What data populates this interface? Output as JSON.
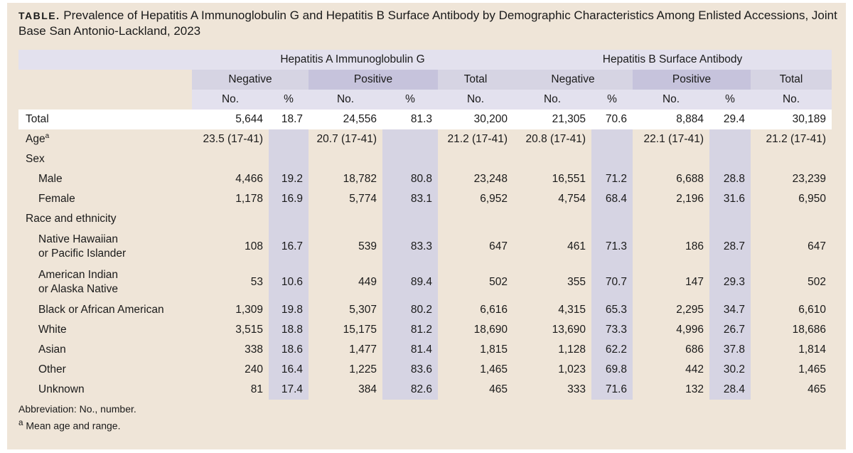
{
  "title": {
    "lead": "TABLE.",
    "text": "Prevalence of Hepatitis A Immunoglobulin G and Hepatitis B Surface Antibody by Demographic Characteristics Among Enlisted Accessions, Joint Base San Antonio-Lackland, 2023"
  },
  "header": {
    "group_a": "Hepatitis A Immunoglobulin G",
    "group_b": "Hepatitis B Surface Antibody",
    "negative": "Negative",
    "positive": "Positive",
    "total": "Total",
    "no": "No.",
    "pct": "%"
  },
  "rows": [
    {
      "label": "Total",
      "a_neg_no": "5,644",
      "a_neg_pct": "18.7",
      "a_pos_no": "24,556",
      "a_pos_pct": "81.3",
      "a_total": "30,200",
      "b_neg_no": "21,305",
      "b_neg_pct": "70.6",
      "b_pos_no": "8,884",
      "b_pos_pct": "29.4",
      "b_total": "30,189"
    },
    {
      "label": "Age",
      "sup": "a",
      "a_neg_no": "23.5 (17-41)",
      "a_neg_pct": "",
      "a_pos_no": "20.7 (17-41)",
      "a_pos_pct": "",
      "a_total": "21.2 (17-41)",
      "b_neg_no": "20.8 (17-41)",
      "b_neg_pct": "",
      "b_pos_no": "22.1 (17-41)",
      "b_pos_pct": "",
      "b_total": "21.2 (17-41)"
    },
    {
      "label": "Sex"
    },
    {
      "label": "Male",
      "a_neg_no": "4,466",
      "a_neg_pct": "19.2",
      "a_pos_no": "18,782",
      "a_pos_pct": "80.8",
      "a_total": "23,248",
      "b_neg_no": "16,551",
      "b_neg_pct": "71.2",
      "b_pos_no": "6,688",
      "b_pos_pct": "28.8",
      "b_total": "23,239"
    },
    {
      "label": "Female",
      "a_neg_no": "1,178",
      "a_neg_pct": "16.9",
      "a_pos_no": "5,774",
      "a_pos_pct": "83.1",
      "a_total": "6,952",
      "b_neg_no": "4,754",
      "b_neg_pct": "68.4",
      "b_pos_no": "2,196",
      "b_pos_pct": "31.6",
      "b_total": "6,950"
    },
    {
      "label": "Race and ethnicity"
    },
    {
      "label": "Native Hawaiian",
      "label2": "or Pacific Islander",
      "a_neg_no": "108",
      "a_neg_pct": "16.7",
      "a_pos_no": "539",
      "a_pos_pct": "83.3",
      "a_total": "647",
      "b_neg_no": "461",
      "b_neg_pct": "71.3",
      "b_pos_no": "186",
      "b_pos_pct": "28.7",
      "b_total": "647"
    },
    {
      "label": "American Indian",
      "label2": "or Alaska Native",
      "a_neg_no": "53",
      "a_neg_pct": "10.6",
      "a_pos_no": "449",
      "a_pos_pct": "89.4",
      "a_total": "502",
      "b_neg_no": "355",
      "b_neg_pct": "70.7",
      "b_pos_no": "147",
      "b_pos_pct": "29.3",
      "b_total": "502"
    },
    {
      "label": "Black or African American",
      "a_neg_no": "1,309",
      "a_neg_pct": "19.8",
      "a_pos_no": "5,307",
      "a_pos_pct": "80.2",
      "a_total": "6,616",
      "b_neg_no": "4,315",
      "b_neg_pct": "65.3",
      "b_pos_no": "2,295",
      "b_pos_pct": "34.7",
      "b_total": "6,610"
    },
    {
      "label": "White",
      "a_neg_no": "3,515",
      "a_neg_pct": "18.8",
      "a_pos_no": "15,175",
      "a_pos_pct": "81.2",
      "a_total": "18,690",
      "b_neg_no": "13,690",
      "b_neg_pct": "73.3",
      "b_pos_no": "4,996",
      "b_pos_pct": "26.7",
      "b_total": "18,686"
    },
    {
      "label": "Asian",
      "a_neg_no": "338",
      "a_neg_pct": "18.6",
      "a_pos_no": "1,477",
      "a_pos_pct": "81.4",
      "a_total": "1,815",
      "b_neg_no": "1,128",
      "b_neg_pct": "62.2",
      "b_pos_no": "686",
      "b_pos_pct": "37.8",
      "b_total": "1,814"
    },
    {
      "label": "Other",
      "a_neg_no": "240",
      "a_neg_pct": "16.4",
      "a_pos_no": "1,225",
      "a_pos_pct": "83.6",
      "a_total": "1,465",
      "b_neg_no": "1,023",
      "b_neg_pct": "69.8",
      "b_pos_no": "442",
      "b_pos_pct": "30.2",
      "b_total": "1,465"
    },
    {
      "label": "Unknown",
      "a_neg_no": "81",
      "a_neg_pct": "17.4",
      "a_pos_no": "384",
      "a_pos_pct": "82.6",
      "a_total": "465",
      "b_neg_no": "333",
      "b_neg_pct": "71.6",
      "b_pos_no": "132",
      "b_pos_pct": "28.4",
      "b_total": "465"
    }
  ],
  "footnotes": {
    "abbreviation": "Abbreviation: No., number.",
    "sup": "a",
    "note_a": " Mean age and range."
  }
}
